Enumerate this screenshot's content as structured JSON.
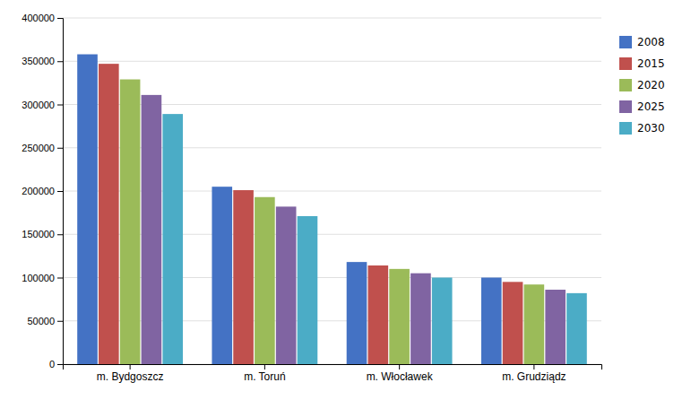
{
  "chart_data": {
    "type": "bar",
    "categories": [
      "m. Bydgoszcz",
      "m. Toruń",
      "m. Włocławek",
      "m. Grudziądz"
    ],
    "series": [
      {
        "name": "2008",
        "color": "#4472C4",
        "values": [
          358000,
          205000,
          118000,
          100000
        ]
      },
      {
        "name": "2015",
        "color": "#C0504D",
        "values": [
          347000,
          201000,
          114000,
          95000
        ]
      },
      {
        "name": "2020",
        "color": "#9BBB59",
        "values": [
          329000,
          193000,
          110000,
          92000
        ]
      },
      {
        "name": "2025",
        "color": "#8064A2",
        "values": [
          311000,
          182000,
          105000,
          86000
        ]
      },
      {
        "name": "2030",
        "color": "#4BACC6",
        "values": [
          289000,
          171000,
          100000,
          82000
        ]
      }
    ],
    "ylim": [
      0,
      400000
    ],
    "yticks": [
      0,
      50000,
      100000,
      150000,
      200000,
      250000,
      300000,
      350000,
      400000
    ],
    "grid": true,
    "legend": "right"
  }
}
